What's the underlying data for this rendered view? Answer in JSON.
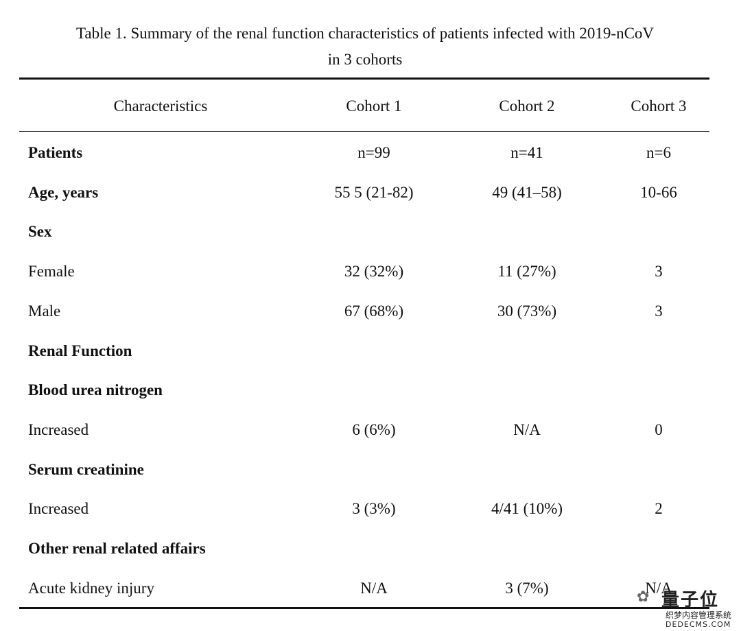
{
  "caption": {
    "line1": "Table 1. Summary of the renal function characteristics of patients infected with 2019-nCoV",
    "line2": "in 3 cohorts"
  },
  "table": {
    "headers": [
      "Characteristics",
      "Cohort 1",
      "Cohort 2",
      "Cohort 3"
    ],
    "rows": [
      {
        "label": "Patients",
        "bold": true,
        "values": [
          "n=99",
          "n=41",
          "n=6"
        ]
      },
      {
        "label": "Age, years",
        "bold": true,
        "values": [
          "55 5 (21-82)",
          "49 (41–58)",
          "10-66"
        ]
      },
      {
        "label": "Sex",
        "bold": true,
        "values": [
          "",
          "",
          ""
        ]
      },
      {
        "label": "Female",
        "bold": false,
        "values": [
          "32 (32%)",
          "11 (27%)",
          "3"
        ]
      },
      {
        "label": "Male",
        "bold": false,
        "values": [
          "67 (68%)",
          "30 (73%)",
          "3"
        ]
      },
      {
        "label": "Renal Function",
        "bold": true,
        "values": [
          "",
          "",
          ""
        ]
      },
      {
        "label": "Blood urea nitrogen",
        "bold": true,
        "values": [
          "",
          "",
          ""
        ]
      },
      {
        "label": "Increased",
        "bold": false,
        "values": [
          "6 (6%)",
          "N/A",
          "0"
        ]
      },
      {
        "label": "Serum creatinine",
        "bold": true,
        "values": [
          "",
          "",
          ""
        ]
      },
      {
        "label": "Increased",
        "bold": false,
        "values": [
          "3 (3%)",
          "4/41 (10%)",
          "2"
        ]
      },
      {
        "label": "Other renal related affairs",
        "bold": true,
        "values": [
          "",
          "",
          ""
        ]
      },
      {
        "label": "Acute kidney injury",
        "bold": false,
        "values": [
          "N/A",
          "3 (7%)",
          "N/A"
        ]
      }
    ]
  },
  "watermark": {
    "brand": "量子位",
    "line1": "织梦内容管理系统",
    "line2": "DEDECMS.COM",
    "icon": "wechat-icon"
  }
}
